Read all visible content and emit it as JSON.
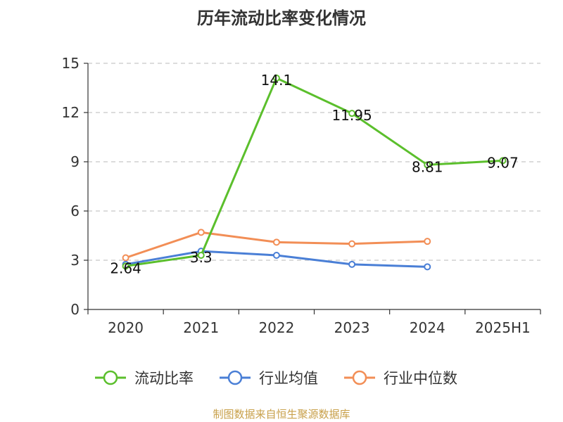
{
  "title": "历年流动比率变化情况",
  "source_note": "制图数据来自恒生聚源数据库",
  "chart_data": {
    "type": "line",
    "title": "历年流动比率变化情况",
    "xlabel": "",
    "ylabel": "",
    "categories": [
      "2020",
      "2021",
      "2022",
      "2023",
      "2024",
      "2025H1"
    ],
    "yticks": [
      "0",
      "3",
      "6",
      "9",
      "12",
      "15"
    ],
    "ylim": [
      0,
      15
    ],
    "grid": "horizontal-dashed",
    "legend_position": "bottom",
    "series": [
      {
        "name": "流动比率",
        "color": "#5bbf2c",
        "values": [
          2.64,
          3.3,
          14.1,
          11.95,
          8.81,
          9.07
        ],
        "data_labels": [
          "2.64",
          "3.3",
          "14.1",
          "11.95",
          "8.81",
          "9.07"
        ]
      },
      {
        "name": "行业均值",
        "color": "#4a7fd6",
        "values": [
          2.75,
          3.55,
          3.3,
          2.75,
          2.6,
          null
        ]
      },
      {
        "name": "行业中位数",
        "color": "#f28e56",
        "values": [
          3.15,
          4.7,
          4.1,
          4.0,
          4.15,
          null
        ]
      }
    ]
  }
}
